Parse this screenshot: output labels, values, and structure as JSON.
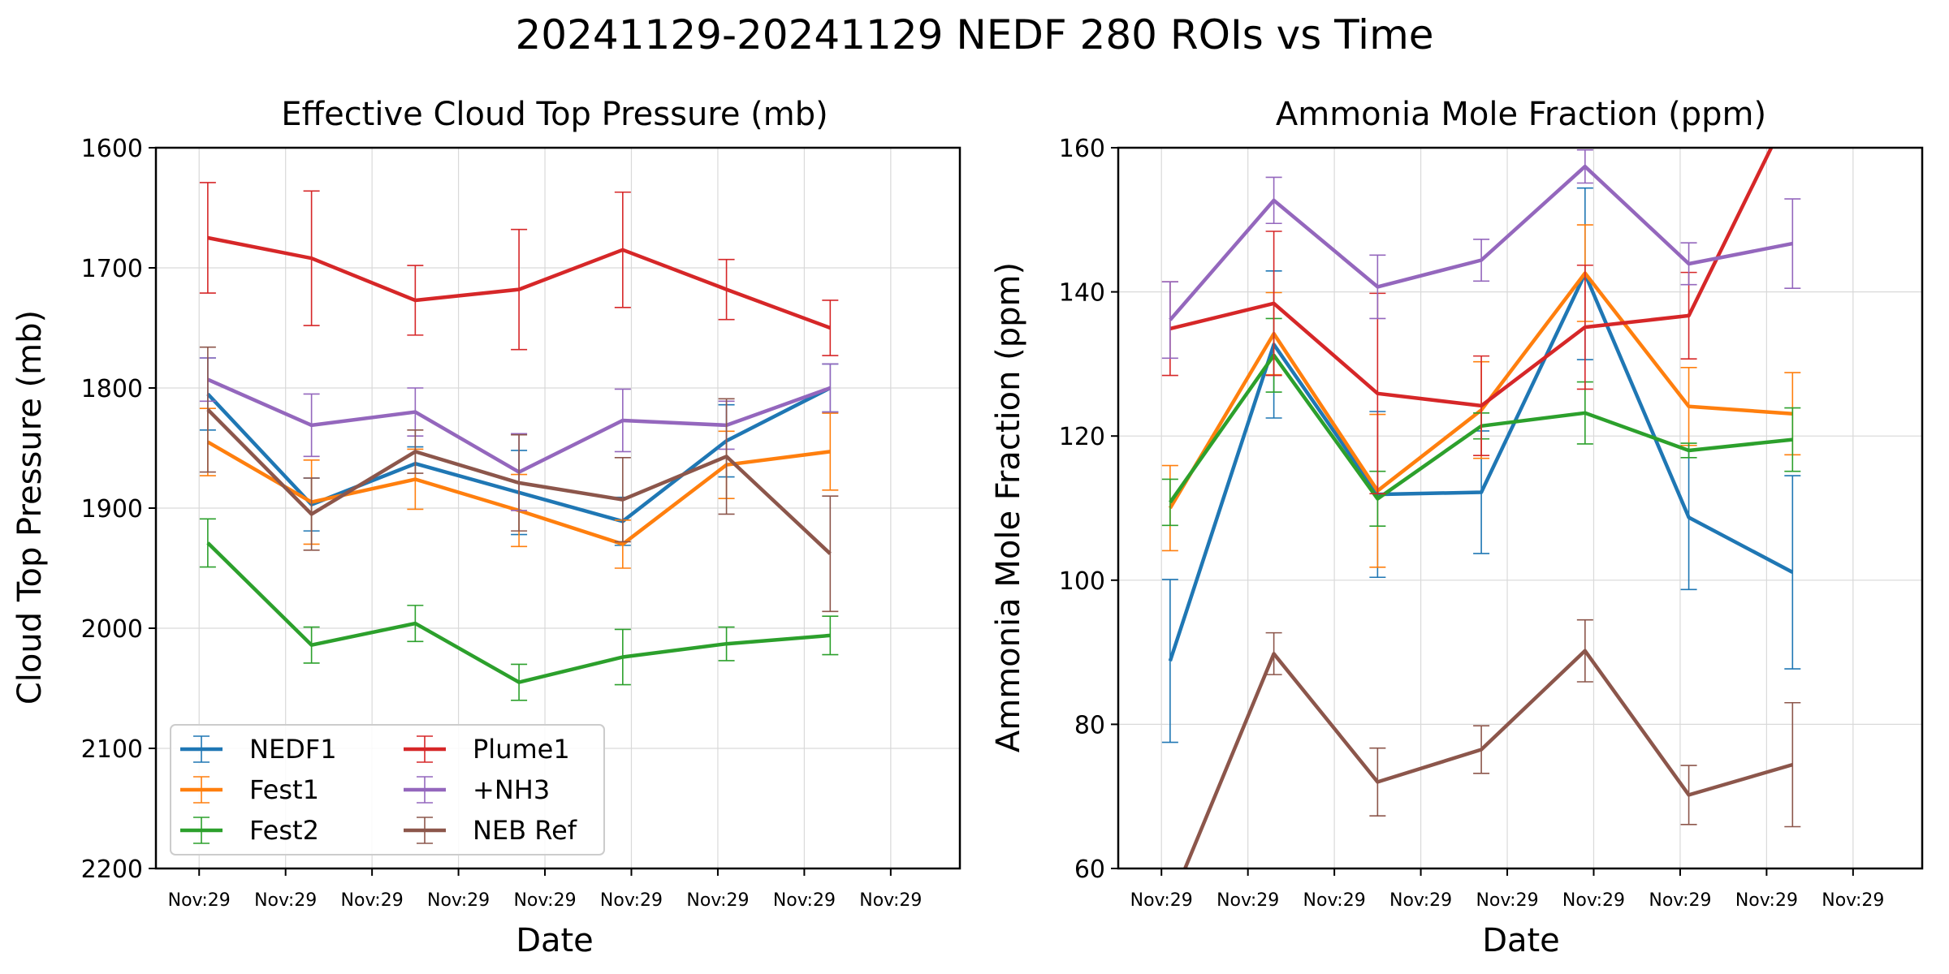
{
  "figure": {
    "title": "20241129-20241129 NEDF 280 ROIs vs Time"
  },
  "colors": {
    "NEDF1": "#1f77b4",
    "Fest1": "#ff7f0e",
    "Fest2": "#2ca02c",
    "Plume1": "#d62728",
    "+NH3": "#9467bd",
    "NEB Ref": "#8c564b"
  },
  "chart_data": [
    {
      "type": "line",
      "title": "Effective Cloud Top Pressure (mb)",
      "xlabel": "Date",
      "ylabel": "Cloud Top Pressure (mb)",
      "ylim": [
        2200,
        1600
      ],
      "y_inverted": true,
      "yticks": [
        1600,
        1700,
        1800,
        1900,
        2000,
        2100,
        2200
      ],
      "xticks": [
        "Nov:29",
        "Nov:29",
        "Nov:29",
        "Nov:29",
        "Nov:29",
        "Nov:29",
        "Nov:29",
        "Nov:29",
        "Nov:29"
      ],
      "grid": true,
      "legend": {
        "placement": "lower-left",
        "columns": 2
      },
      "x": [
        0.1,
        1.3,
        2.5,
        3.7,
        4.9,
        6.1,
        7.3
      ],
      "series": [
        {
          "name": "NEDF1",
          "values": [
            1805,
            1897,
            1863,
            1887,
            1911,
            1844,
            1800
          ],
          "err": [
            30,
            22,
            14,
            35,
            20,
            30,
            20
          ]
        },
        {
          "name": "Fest1",
          "values": [
            1845,
            1895,
            1876,
            1902,
            1930,
            1864,
            1853
          ],
          "err": [
            28,
            35,
            25,
            30,
            20,
            28,
            32
          ]
        },
        {
          "name": "Fest2",
          "values": [
            1929,
            2014,
            1996,
            2045,
            2024,
            2013,
            2006
          ],
          "err": [
            20,
            15,
            15,
            15,
            23,
            14,
            16
          ]
        },
        {
          "name": "Plume1",
          "values": [
            1675,
            1692,
            1727,
            1718,
            1685,
            1718,
            1750
          ],
          "err": [
            46,
            56,
            29,
            50,
            48,
            25,
            23
          ]
        },
        {
          "name": "+NH3",
          "values": [
            1793,
            1831,
            1820,
            1870,
            1827,
            1831,
            1800
          ],
          "err": [
            18,
            26,
            20,
            32,
            26,
            20,
            20
          ]
        },
        {
          "name": "NEB Ref",
          "values": [
            1818,
            1905,
            1853,
            1879,
            1893,
            1857,
            1938
          ],
          "err": [
            52,
            30,
            18,
            40,
            35,
            48,
            48
          ]
        }
      ]
    },
    {
      "type": "line",
      "title": "Ammonia Mole Fraction (ppm)",
      "xlabel": "Date",
      "ylabel": "Ammonia Mole Fraction (ppm)",
      "ylim": [
        60,
        160
      ],
      "yticks": [
        60,
        80,
        100,
        120,
        140,
        160
      ],
      "xticks": [
        "Nov:29",
        "Nov:29",
        "Nov:29",
        "Nov:29",
        "Nov:29",
        "Nov:29",
        "Nov:29",
        "Nov:29",
        "Nov:29"
      ],
      "grid": true,
      "x": [
        0.1,
        1.3,
        2.5,
        3.7,
        4.9,
        6.1,
        7.3
      ],
      "series": [
        {
          "name": "NEDF1",
          "values": [
            88.8,
            132.7,
            111.9,
            112.2,
            142.5,
            108.7,
            101.1
          ],
          "err": [
            11.3,
            10.2,
            11.5,
            8.5,
            11.9,
            10.0,
            13.4
          ]
        },
        {
          "name": "Fest1",
          "values": [
            110.0,
            134.2,
            112.4,
            123.6,
            142.6,
            124.1,
            123.1
          ],
          "err": [
            5.9,
            5.7,
            10.6,
            6.7,
            6.7,
            5.4,
            5.7
          ]
        },
        {
          "name": "Fest2",
          "values": [
            110.8,
            131.2,
            111.3,
            121.4,
            123.2,
            118.0,
            119.5
          ],
          "err": [
            3.2,
            5.1,
            3.8,
            1.8,
            4.3,
            1.0,
            4.4
          ]
        },
        {
          "name": "Plume1",
          "values": [
            134.9,
            138.4,
            125.9,
            124.2,
            135.1,
            136.7,
            166.0
          ],
          "err": [
            6.5,
            10.0,
            13.9,
            6.9,
            8.6,
            6.0,
            0
          ]
        },
        {
          "name": "+NH3",
          "values": [
            136.1,
            152.7,
            140.7,
            144.4,
            157.4,
            143.9,
            146.7
          ],
          "err": [
            5.3,
            3.2,
            4.4,
            2.9,
            2.3,
            2.9,
            6.2
          ]
        },
        {
          "name": "NEB Ref",
          "values": [
            55.0,
            89.8,
            72.0,
            76.5,
            90.2,
            70.2,
            74.4
          ],
          "err": [
            0,
            2.9,
            4.7,
            3.3,
            4.3,
            4.1,
            8.6
          ]
        }
      ]
    }
  ]
}
